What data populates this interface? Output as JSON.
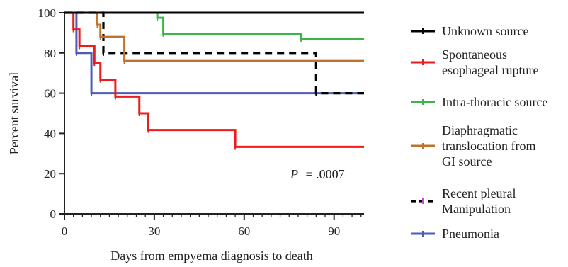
{
  "chart_data": {
    "type": "line",
    "subtype": "kaplan-meier",
    "title": "",
    "xlabel": "Days from empyema diagnosis to death",
    "ylabel": "Percent survival",
    "xlim": [
      0,
      100
    ],
    "ylim": [
      0,
      100
    ],
    "xticks": [
      0,
      30,
      60,
      90
    ],
    "yticks": [
      0,
      20,
      40,
      60,
      80,
      100
    ],
    "grid": false,
    "legend_position": "right",
    "annotation": {
      "p_label": "P",
      "p_value": "= .0007"
    },
    "series": [
      {
        "name": "Unknown source",
        "color": "#000000",
        "dash": "solid",
        "steps": [
          [
            0,
            100
          ],
          [
            100,
            100
          ]
        ]
      },
      {
        "name": "Spontaneous esophageal rupture",
        "color": "#ee1c1c",
        "dash": "solid",
        "steps": [
          [
            0,
            100
          ],
          [
            3,
            91.7
          ],
          [
            5,
            83.3
          ],
          [
            10,
            75
          ],
          [
            12,
            66.7
          ],
          [
            17,
            58.3
          ],
          [
            25,
            50
          ],
          [
            28,
            41.7
          ],
          [
            57,
            33.3
          ],
          [
            100,
            33.3
          ]
        ]
      },
      {
        "name": "Intra-thoracic source",
        "color": "#3ab54a",
        "dash": "solid",
        "steps": [
          [
            0,
            100
          ],
          [
            29,
            100
          ],
          [
            31,
            97.5
          ],
          [
            33,
            89.5
          ],
          [
            79,
            87
          ],
          [
            100,
            87
          ]
        ]
      },
      {
        "name": "Diaphragmatic translocation from GI source",
        "color": "#c0732e",
        "dash": "solid",
        "steps": [
          [
            0,
            100
          ],
          [
            10,
            100
          ],
          [
            11,
            94
          ],
          [
            12,
            88
          ],
          [
            20,
            76
          ],
          [
            100,
            76
          ]
        ]
      },
      {
        "name": "Recent pleural Manipulation",
        "color": "#000000",
        "dash": "dashed",
        "steps": [
          [
            0,
            100
          ],
          [
            12,
            100
          ],
          [
            13,
            80
          ],
          [
            84,
            60
          ],
          [
            100,
            60
          ]
        ]
      },
      {
        "name": "Pneumonia",
        "color": "#4f5bb5",
        "dash": "solid",
        "steps": [
          [
            0,
            100
          ],
          [
            4,
            80
          ],
          [
            9,
            60
          ],
          [
            100,
            60
          ]
        ]
      }
    ],
    "legend": [
      {
        "lines": [
          "Unknown source"
        ],
        "series": 0
      },
      {
        "lines": [
          "Spontaneous",
          "esophageal rupture"
        ],
        "series": 1
      },
      {
        "lines": [
          "Intra-thoracic source"
        ],
        "series": 2
      },
      {
        "lines": [
          "Diaphragmatic",
          "translocation from",
          "GI source"
        ],
        "series": 3
      },
      {
        "lines": [
          "Recent pleural",
          "Manipulation"
        ],
        "series": 4
      },
      {
        "lines": [
          "Pneumonia"
        ],
        "series": 5
      }
    ]
  }
}
